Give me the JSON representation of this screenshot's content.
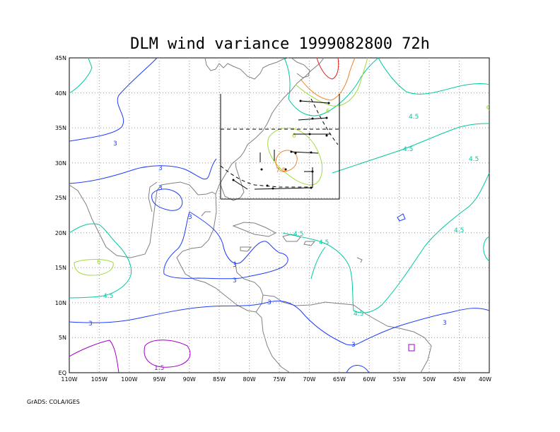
{
  "title": "DLM wind variance 1999082800 72h",
  "footer": "GrADS: COLA/IGES",
  "lat_labels": [
    "EQ",
    "5N",
    "10N",
    "15N",
    "20N",
    "25N",
    "30N",
    "35N",
    "40N",
    "45N"
  ],
  "lon_labels": [
    "110W",
    "105W",
    "100W",
    "95W",
    "90W",
    "85W",
    "80W",
    "75W",
    "70W",
    "65W",
    "60W",
    "55W",
    "50W",
    "45W",
    "40W"
  ],
  "contour_labels": {
    "l3": "3",
    "l15": "1.5",
    "l45": "4.5",
    "l6": "6",
    "l75": "7.5"
  },
  "colors": {
    "c15": "#a000c8",
    "c3": "#1e3cff",
    "c45": "#00c8a0",
    "c6": "#a0dc3c",
    "c75": "#f08228",
    "c9": "#e61e1e",
    "coast": "#808080"
  }
}
